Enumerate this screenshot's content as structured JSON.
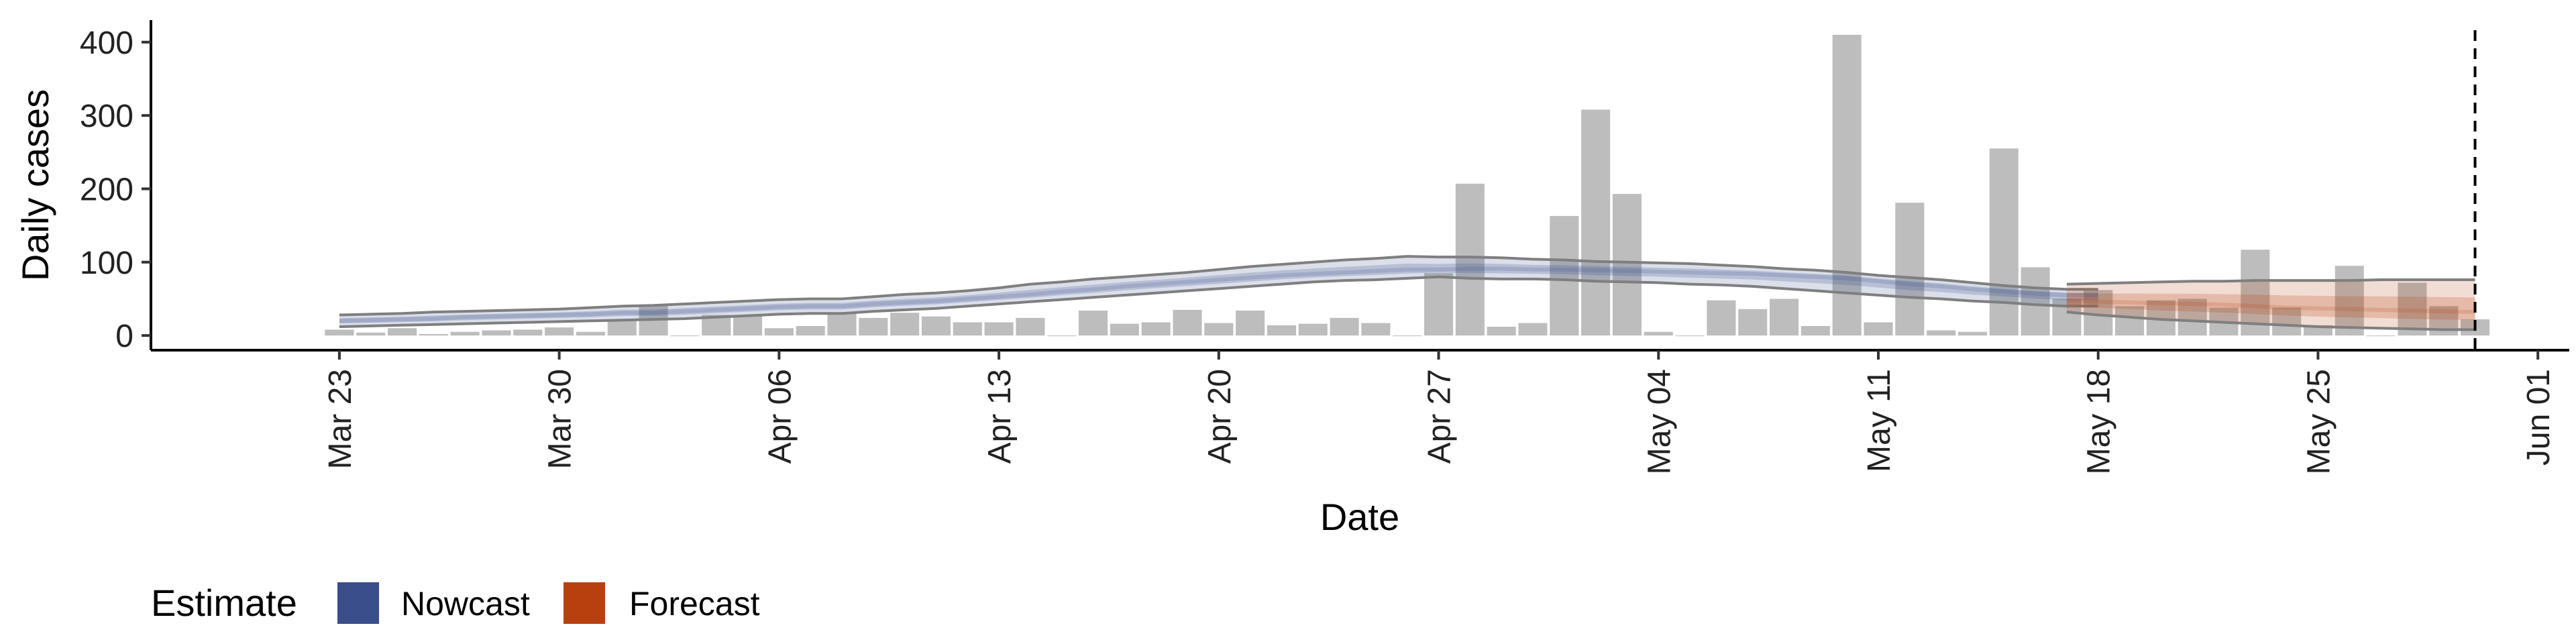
{
  "chart_data": {
    "type": "bar",
    "xlabel": "Date",
    "ylabel": "Daily cases",
    "ylim": [
      -20,
      430
    ],
    "yticks": [
      0,
      100,
      200,
      300,
      400
    ],
    "xlim": [
      "2020-03-17",
      "2020-06-02"
    ],
    "xticks": [
      {
        "date": "2020-03-23",
        "label": "Mar 23"
      },
      {
        "date": "2020-03-30",
        "label": "Mar 30"
      },
      {
        "date": "2020-04-06",
        "label": "Apr 06"
      },
      {
        "date": "2020-04-13",
        "label": "Apr 13"
      },
      {
        "date": "2020-04-20",
        "label": "Apr 20"
      },
      {
        "date": "2020-04-27",
        "label": "Apr 27"
      },
      {
        "date": "2020-05-04",
        "label": "May 04"
      },
      {
        "date": "2020-05-11",
        "label": "May 11"
      },
      {
        "date": "2020-05-18",
        "label": "May 18"
      },
      {
        "date": "2020-05-25",
        "label": "May 25"
      },
      {
        "date": "2020-06-01",
        "label": "Jun 01"
      }
    ],
    "bars": {
      "start_date": "2020-03-23",
      "values": [
        8,
        4,
        10,
        2,
        5,
        7,
        8,
        11,
        5,
        22,
        42,
        0,
        28,
        28,
        10,
        13,
        30,
        24,
        31,
        26,
        18,
        18,
        24,
        0,
        34,
        16,
        18,
        35,
        17,
        34,
        14,
        16,
        24,
        17,
        0,
        85,
        207,
        12,
        17,
        163,
        308,
        193,
        5,
        0,
        48,
        36,
        50,
        13,
        410,
        18,
        181,
        7,
        5,
        255,
        93,
        50,
        62,
        40,
        48,
        50,
        38,
        117,
        38,
        14,
        95,
        0,
        72,
        40,
        22
      ]
    },
    "nowcast": {
      "start_date": "2020-03-23",
      "median": [
        20,
        21,
        22,
        23,
        25,
        26,
        27,
        28,
        29,
        31,
        31,
        33,
        35,
        37,
        39,
        40,
        40,
        43,
        45,
        47,
        50,
        53,
        56,
        60,
        63,
        67,
        70,
        73,
        76,
        79,
        82,
        84,
        86,
        88,
        90,
        90,
        91,
        91,
        90,
        90,
        89,
        88,
        87,
        86,
        85,
        84,
        82,
        80,
        78,
        74,
        70,
        67,
        63,
        60,
        57,
        55,
        55
      ],
      "upper": [
        28,
        29,
        30,
        32,
        33,
        34,
        35,
        36,
        38,
        40,
        41,
        43,
        45,
        47,
        49,
        50,
        50,
        53,
        56,
        58,
        61,
        65,
        70,
        73,
        77,
        80,
        83,
        86,
        90,
        94,
        97,
        100,
        103,
        105,
        108,
        107,
        107,
        106,
        104,
        103,
        101,
        100,
        99,
        98,
        96,
        94,
        91,
        89,
        86,
        82,
        79,
        76,
        72,
        68,
        65,
        63,
        63
      ],
      "lower": [
        12,
        13,
        14,
        15,
        16,
        17,
        18,
        19,
        20,
        21,
        22,
        23,
        25,
        27,
        29,
        30,
        30,
        33,
        35,
        37,
        40,
        43,
        46,
        49,
        52,
        55,
        58,
        61,
        64,
        67,
        70,
        73,
        75,
        76,
        78,
        80,
        78,
        77,
        77,
        76,
        74,
        73,
        72,
        70,
        69,
        67,
        64,
        61,
        58,
        55,
        52,
        50,
        47,
        45,
        42,
        40,
        40
      ]
    },
    "forecast": {
      "start_date": "2020-05-17",
      "median": [
        48,
        46,
        45,
        44,
        43,
        42,
        40,
        38,
        37,
        36,
        35,
        34,
        33,
        32
      ],
      "upper": [
        70,
        71,
        72,
        73,
        74,
        74,
        75,
        75,
        75,
        75,
        76,
        76,
        76,
        76
      ],
      "lower": [
        32,
        28,
        25,
        22,
        20,
        18,
        16,
        14,
        12,
        11,
        10,
        9,
        8,
        8
      ]
    },
    "forecast_start_line": "2020-05-30",
    "legend": {
      "title": "Estimate",
      "position": "bottom-left",
      "items": [
        {
          "label": "Nowcast",
          "color": "#3A4E8C"
        },
        {
          "label": "Forecast",
          "color": "#B8400F"
        }
      ]
    },
    "grid": false
  },
  "colors": {
    "bar": "#BDBDBD",
    "nowcast_band": "#3A4E8C",
    "forecast_band": "#B8400F",
    "outline": "#7F7F7F"
  }
}
